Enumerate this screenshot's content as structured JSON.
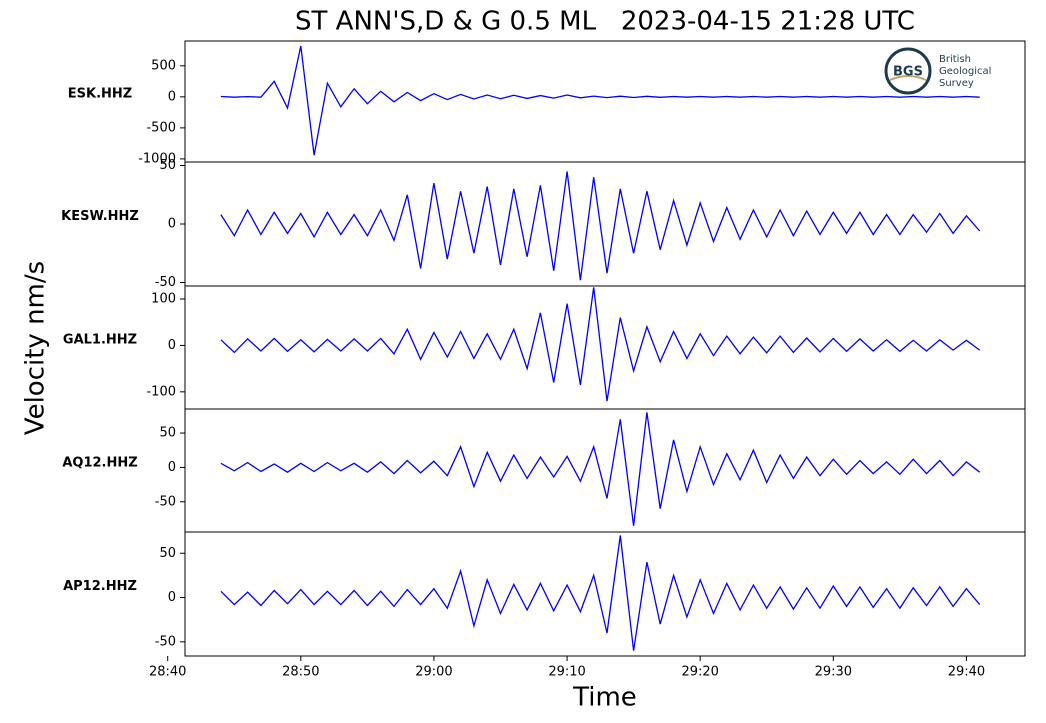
{
  "title": "ST ANN'S,D & G 0.5 ML   2023-04-15 21:28 UTC",
  "y_label": "Velocity nm/s",
  "x_label": "Time",
  "logo": {
    "abbr": "BGS",
    "lines": [
      "British",
      "Geological",
      "Survey"
    ]
  },
  "chart_data": [
    {
      "type": "line",
      "label": "ESK.HHZ",
      "color": "#0000ff",
      "x": [
        44,
        45,
        46,
        47,
        48,
        49,
        50,
        51,
        52,
        53,
        54,
        55,
        56,
        57,
        58,
        59,
        60,
        61,
        62,
        63,
        64,
        65,
        66,
        67,
        68,
        69,
        70,
        71,
        72,
        73,
        74,
        75,
        76,
        77,
        78,
        79,
        80,
        81,
        82,
        83,
        84,
        85,
        86,
        87,
        88,
        89,
        90,
        91,
        92,
        93,
        94,
        95,
        96,
        97,
        98,
        99,
        100,
        101
      ],
      "values": [
        5,
        -5,
        4,
        -6,
        250,
        -180,
        820,
        -940,
        220,
        -160,
        130,
        -110,
        90,
        -80,
        70,
        -60,
        50,
        -45,
        40,
        -35,
        30,
        -30,
        25,
        -25,
        20,
        -20,
        30,
        -15,
        12,
        -12,
        10,
        -10,
        8,
        -8,
        6,
        -6,
        5,
        -5,
        5,
        -5,
        5,
        -5,
        5,
        -5,
        5,
        -5,
        5,
        -5,
        5,
        -5,
        5,
        -5,
        5,
        -5,
        5,
        -5,
        5,
        -5
      ],
      "xlim": [
        41.3,
        104.4
      ],
      "ylim": [
        -1050,
        900
      ],
      "yticks": [
        500,
        0,
        -500,
        -1000
      ]
    },
    {
      "type": "line",
      "label": "KESW.HHZ",
      "color": "#0000ff",
      "x": [
        44,
        45,
        46,
        47,
        48,
        49,
        50,
        51,
        52,
        53,
        54,
        55,
        56,
        57,
        58,
        59,
        60,
        61,
        62,
        63,
        64,
        65,
        66,
        67,
        68,
        69,
        70,
        71,
        72,
        73,
        74,
        75,
        76,
        77,
        78,
        79,
        80,
        81,
        82,
        83,
        84,
        85,
        86,
        87,
        88,
        89,
        90,
        91,
        92,
        93,
        94,
        95,
        96,
        97,
        98,
        99,
        100,
        101
      ],
      "values": [
        8,
        -10,
        12,
        -9,
        10,
        -8,
        9,
        -11,
        10,
        -9,
        8,
        -10,
        12,
        -14,
        25,
        -38,
        35,
        -30,
        28,
        -25,
        32,
        -35,
        30,
        -28,
        33,
        -40,
        45,
        -48,
        40,
        -42,
        30,
        -25,
        28,
        -22,
        20,
        -18,
        18,
        -15,
        14,
        -13,
        12,
        -11,
        12,
        -10,
        11,
        -9,
        10,
        -8,
        10,
        -9,
        8,
        -9,
        8,
        -7,
        9,
        -8,
        7,
        -6
      ],
      "xlim": [
        41.3,
        104.4
      ],
      "ylim": [
        -53,
        53
      ],
      "yticks": [
        50,
        0,
        -50
      ]
    },
    {
      "type": "line",
      "label": "GAL1.HHZ",
      "color": "#0000ff",
      "x": [
        44,
        45,
        46,
        47,
        48,
        49,
        50,
        51,
        52,
        53,
        54,
        55,
        56,
        57,
        58,
        59,
        60,
        61,
        62,
        63,
        64,
        65,
        66,
        67,
        68,
        69,
        70,
        71,
        72,
        73,
        74,
        75,
        76,
        77,
        78,
        79,
        80,
        81,
        82,
        83,
        84,
        85,
        86,
        87,
        88,
        89,
        90,
        91,
        92,
        93,
        94,
        95,
        96,
        97,
        98,
        99,
        100,
        101
      ],
      "values": [
        12,
        -15,
        14,
        -12,
        15,
        -13,
        12,
        -14,
        13,
        -12,
        14,
        -12,
        15,
        -18,
        35,
        -30,
        28,
        -25,
        30,
        -28,
        25,
        -30,
        35,
        -50,
        70,
        -80,
        90,
        -85,
        125,
        -120,
        60,
        -55,
        40,
        -35,
        30,
        -28,
        25,
        -22,
        20,
        -18,
        18,
        -16,
        20,
        -15,
        16,
        -14,
        15,
        -13,
        14,
        -12,
        12,
        -13,
        11,
        -12,
        12,
        -10,
        11,
        -10
      ],
      "xlim": [
        41.3,
        104.4
      ],
      "ylim": [
        -137,
        128
      ],
      "yticks": [
        100,
        0,
        -100
      ]
    },
    {
      "type": "line",
      "label": "AQ12.HHZ",
      "color": "#0000ff",
      "x": [
        44,
        45,
        46,
        47,
        48,
        49,
        50,
        51,
        52,
        53,
        54,
        55,
        56,
        57,
        58,
        59,
        60,
        61,
        62,
        63,
        64,
        65,
        66,
        67,
        68,
        69,
        70,
        71,
        72,
        73,
        74,
        75,
        76,
        77,
        78,
        79,
        80,
        81,
        82,
        83,
        84,
        85,
        86,
        87,
        88,
        89,
        90,
        91,
        92,
        93,
        94,
        95,
        96,
        97,
        98,
        99,
        100,
        101
      ],
      "values": [
        6,
        -5,
        7,
        -6,
        5,
        -7,
        6,
        -6,
        7,
        -5,
        6,
        -7,
        8,
        -9,
        10,
        -8,
        9,
        -12,
        30,
        -28,
        22,
        -20,
        18,
        -16,
        15,
        -14,
        16,
        -20,
        30,
        -45,
        70,
        -85,
        80,
        -60,
        40,
        -35,
        30,
        -25,
        20,
        -18,
        25,
        -22,
        18,
        -16,
        15,
        -12,
        12,
        -10,
        10,
        -9,
        8,
        -10,
        12,
        -9,
        10,
        -12,
        8,
        -7
      ],
      "xlim": [
        41.3,
        104.4
      ],
      "ylim": [
        -94,
        85
      ],
      "yticks": [
        50,
        0,
        -50
      ]
    },
    {
      "type": "line",
      "label": "AP12.HHZ",
      "color": "#0000ff",
      "x": [
        44,
        45,
        46,
        47,
        48,
        49,
        50,
        51,
        52,
        53,
        54,
        55,
        56,
        57,
        58,
        59,
        60,
        61,
        62,
        63,
        64,
        65,
        66,
        67,
        68,
        69,
        70,
        71,
        72,
        73,
        74,
        75,
        76,
        77,
        78,
        79,
        80,
        81,
        82,
        83,
        84,
        85,
        86,
        87,
        88,
        89,
        90,
        91,
        92,
        93,
        94,
        95,
        96,
        97,
        98,
        99,
        100,
        101
      ],
      "values": [
        7,
        -8,
        6,
        -9,
        8,
        -7,
        9,
        -8,
        7,
        -8,
        8,
        -9,
        7,
        -10,
        9,
        -8,
        10,
        -12,
        30,
        -32,
        20,
        -18,
        15,
        -14,
        16,
        -15,
        14,
        -16,
        25,
        -40,
        70,
        -60,
        40,
        -30,
        25,
        -22,
        20,
        -18,
        16,
        -14,
        14,
        -12,
        12,
        -13,
        11,
        -12,
        13,
        -10,
        12,
        -11,
        10,
        -12,
        11,
        -9,
        12,
        -10,
        10,
        -8
      ],
      "xlim": [
        41.3,
        104.4
      ],
      "ylim": [
        -66,
        74
      ],
      "yticks": [
        50,
        0,
        -50
      ],
      "xticks": [
        {
          "value": 40,
          "label": "28:40"
        },
        {
          "value": 50,
          "label": "28:50"
        },
        {
          "value": 60,
          "label": "29:00"
        },
        {
          "value": 70,
          "label": "29:10"
        },
        {
          "value": 80,
          "label": "29:20"
        },
        {
          "value": 90,
          "label": "29:30"
        },
        {
          "value": 100,
          "label": "29:40"
        }
      ]
    }
  ]
}
